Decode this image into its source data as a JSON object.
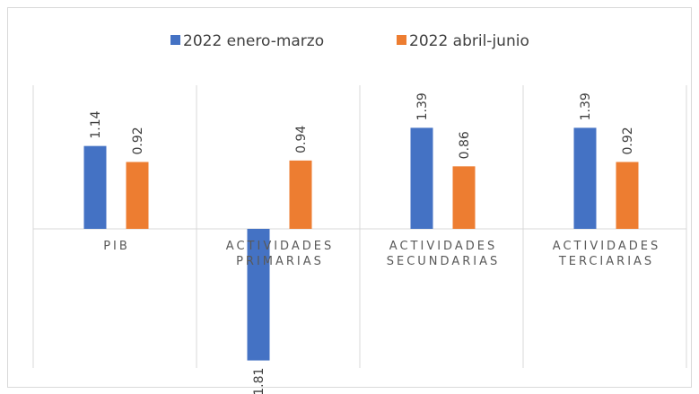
{
  "chart_data": {
    "type": "bar",
    "categories": [
      "PIB",
      "ACTIVIDADES PRIMARIAS",
      "ACTIVIDADES SECUNDARIAS",
      "ACTIVIDADES TERCIARIAS"
    ],
    "series": [
      {
        "name": "2022 enero-marzo",
        "color": "#4472c4",
        "values": [
          1.14,
          -1.81,
          1.39,
          1.39
        ]
      },
      {
        "name": "2022 abril-junio",
        "color": "#ed7d31",
        "values": [
          0.92,
          0.94,
          0.86,
          0.92
        ]
      }
    ],
    "legend": "top"
  }
}
